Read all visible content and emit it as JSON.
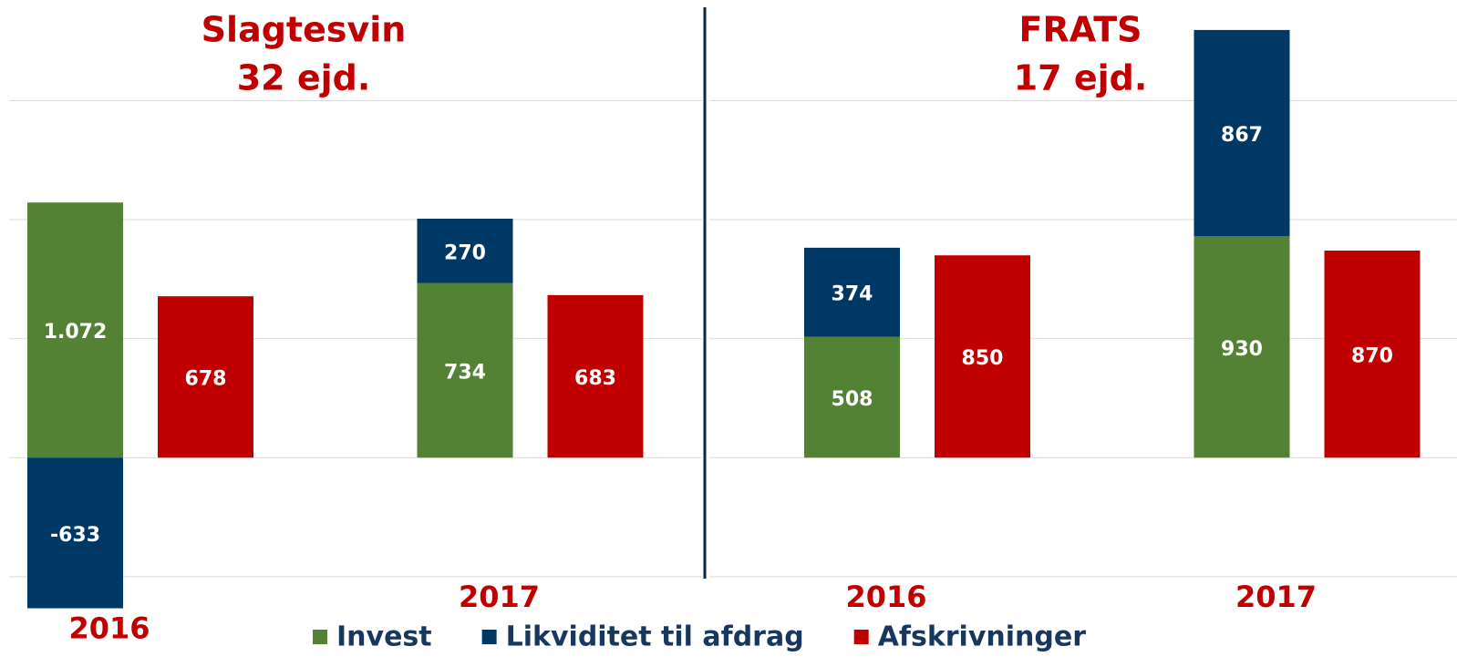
{
  "chart_data": [
    {
      "type": "bar",
      "title": [
        "Slagtesvin",
        "32 ejd."
      ],
      "categories": [
        "2016",
        "2017"
      ],
      "series": [
        {
          "name": "Invest",
          "color": "#548235",
          "values": [
            1072,
            734
          ],
          "value_labels": [
            "1.072",
            "734"
          ],
          "stack": "a"
        },
        {
          "name": "Likviditet til afdrag",
          "color": "#003865",
          "values": [
            -633,
            270
          ],
          "stack": "a"
        },
        {
          "name": "Afskrivninger",
          "color": "#c00000",
          "values": [
            678,
            683
          ],
          "stack": "b"
        }
      ],
      "ylim": [
        -650,
        1900
      ],
      "yticks": [
        -500,
        0,
        500,
        1000,
        1500
      ],
      "grid": true
    },
    {
      "type": "bar",
      "title": [
        "FRATS",
        "17 ejd."
      ],
      "categories": [
        "2016",
        "2017"
      ],
      "series": [
        {
          "values": [
            508,
            930
          ],
          "stack": "a"
        },
        {
          "values": [
            374,
            867
          ],
          "stack": "a"
        },
        {
          "values": [
            850,
            870
          ],
          "stack": "b"
        }
      ],
      "ylim": [
        -650,
        1900
      ],
      "yticks": [
        -500,
        0,
        500,
        1000,
        1500
      ],
      "grid": true
    }
  ]
}
